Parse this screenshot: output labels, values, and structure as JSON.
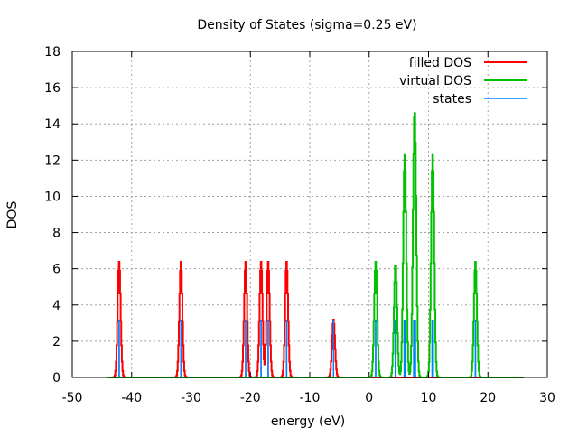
{
  "chart_data": {
    "type": "line",
    "title": "Density of States (sigma=0.25 eV)",
    "xlabel": "energy (eV)",
    "ylabel": "DOS",
    "xlim": [
      -50,
      30
    ],
    "ylim": [
      0,
      18
    ],
    "xticks": [
      -50,
      -40,
      -30,
      -20,
      -10,
      0,
      10,
      20,
      30
    ],
    "yticks": [
      0,
      2,
      4,
      6,
      8,
      10,
      12,
      14,
      16,
      18
    ],
    "grid": true,
    "legend_position": "top-right",
    "sigma": 0.25,
    "occupancy": 2,
    "step": 0.1,
    "series": [
      {
        "name": "filled DOS",
        "color": "#ff0000",
        "state_energies": [
          -42.1,
          -42.1,
          -31.7,
          -31.7,
          -20.8,
          -20.8,
          -18.2,
          -18.2,
          -17.0,
          -17.0,
          -13.9,
          -13.9,
          -6.0
        ]
      },
      {
        "name": "virtual DOS",
        "color": "#00c000",
        "state_energies": [
          1.1,
          1.1,
          4.4,
          4.5,
          5.9,
          6.0,
          6.0,
          6.1,
          7.5,
          7.6,
          7.7,
          7.7,
          7.8,
          10.6,
          10.7,
          10.7,
          10.8,
          17.9,
          17.9
        ]
      },
      {
        "name": "states",
        "color": "#0080ff",
        "stick_height": 3.19
      }
    ]
  }
}
